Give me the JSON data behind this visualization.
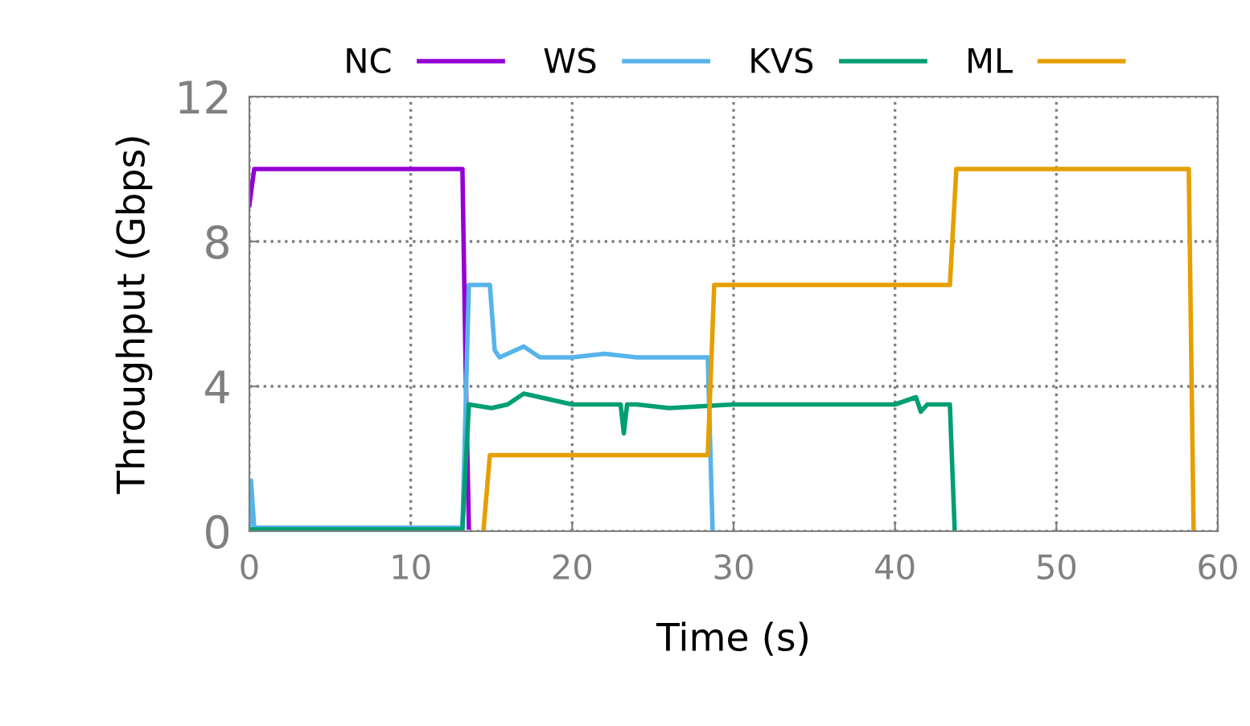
{
  "chart_data": {
    "type": "line",
    "xlabel": "Time (s)",
    "ylabel": "Throughput (Gbps)",
    "xlim": [
      0,
      60
    ],
    "ylim": [
      0,
      12
    ],
    "xticks": [
      0,
      10,
      20,
      30,
      40,
      50,
      60
    ],
    "yticks": [
      0,
      4,
      8,
      12
    ],
    "grid": true,
    "legend": "top",
    "line_style": "solid",
    "marker": "none",
    "series": [
      {
        "name": "NC",
        "color": "#9400d3",
        "x": [
          0,
          0.3,
          5,
          10,
          13.2,
          13.4,
          13.6
        ],
        "values": [
          9,
          10,
          10,
          10,
          10,
          4.5,
          0.1
        ]
      },
      {
        "name": "WS",
        "color": "#56b4e9",
        "x": [
          0,
          0.1,
          0.3,
          5,
          10,
          13.2,
          13.6,
          14.9,
          15.2,
          15.5,
          16,
          17,
          18,
          20,
          22,
          24,
          26,
          28,
          28.4,
          28.7
        ],
        "values": [
          0.1,
          1.4,
          0.1,
          0.1,
          0.1,
          0.1,
          6.8,
          6.8,
          5.0,
          4.8,
          4.9,
          5.1,
          4.8,
          4.8,
          4.9,
          4.8,
          4.8,
          4.8,
          4.8,
          0
        ]
      },
      {
        "name": "KVS",
        "color": "#009e73",
        "x": [
          0,
          5,
          10,
          13.2,
          13.6,
          15,
          16,
          17,
          20,
          22,
          23,
          23.2,
          23.4,
          24,
          26,
          30,
          35,
          40,
          41.3,
          41.6,
          42,
          43.4,
          43.7
        ],
        "values": [
          0.05,
          0.05,
          0.05,
          0.05,
          3.5,
          3.4,
          3.5,
          3.8,
          3.5,
          3.5,
          3.5,
          2.7,
          3.5,
          3.5,
          3.4,
          3.5,
          3.5,
          3.5,
          3.7,
          3.3,
          3.5,
          3.5,
          0
        ]
      },
      {
        "name": "ML",
        "color": "#e69f00",
        "x": [
          14.5,
          14.9,
          20,
          25,
          28.4,
          28.8,
          35,
          40,
          43.4,
          43.8,
          50,
          55,
          58.2,
          58.5
        ],
        "values": [
          0,
          2.1,
          2.1,
          2.1,
          2.1,
          6.8,
          6.8,
          6.8,
          6.8,
          10,
          10,
          10,
          10,
          0
        ]
      }
    ]
  }
}
